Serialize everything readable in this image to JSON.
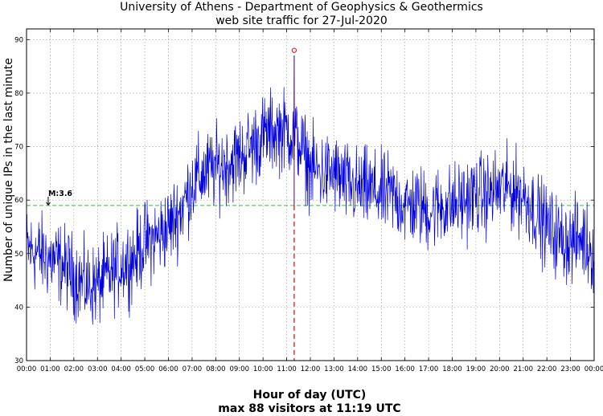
{
  "title_line1": "University of Athens - Department of Geophysics & Geothermics",
  "title_line2": "web site traffic for 27-Jul-2020",
  "footer_line1": "Hour of day (UTC)",
  "footer_line2": "max 88 visitors at 11:19 UTC",
  "colors": {
    "series": "#0000dd",
    "reference": "#22cc22",
    "marker": "#ee2222",
    "grid": "#999999"
  },
  "chart_data": {
    "type": "line",
    "ylabel": "Number of unique IPs in the last minute",
    "xlabel": "Hour of day (UTC)",
    "xlim": [
      "00:00",
      "24:00"
    ],
    "ylim": [
      30,
      92
    ],
    "grid": true,
    "x_ticks": [
      "00:00",
      "01:00",
      "02:00",
      "03:00",
      "04:00",
      "05:00",
      "06:00",
      "07:00",
      "08:00",
      "09:00",
      "10:00",
      "11:00",
      "12:00",
      "13:00",
      "14:00",
      "15:00",
      "16:00",
      "17:00",
      "18:00",
      "19:00",
      "20:00",
      "21:00",
      "22:00",
      "23:00",
      "00:00"
    ],
    "y_ticks": [
      30,
      40,
      50,
      60,
      70,
      80,
      90
    ],
    "series": [
      {
        "style": "noisy per-minute line, approx. +/-6 around mean",
        "x_hours": [
          0,
          0.5,
          1,
          1.5,
          2,
          2.5,
          3,
          3.5,
          4,
          4.5,
          5,
          5.5,
          6,
          6.5,
          7,
          7.5,
          8,
          8.5,
          9,
          9.5,
          10,
          10.5,
          11,
          11.5,
          12,
          12.5,
          13,
          13.5,
          14,
          14.5,
          15,
          15.5,
          16,
          16.5,
          17,
          17.5,
          18,
          18.5,
          19,
          19.5,
          20,
          20.5,
          21,
          21.5,
          22,
          22.5,
          23,
          23.5,
          24
        ],
        "values": [
          51,
          50,
          49,
          48,
          46,
          44,
          44,
          46,
          48,
          49,
          52,
          53,
          55,
          58,
          63,
          65,
          66,
          67,
          68,
          70,
          72,
          73,
          73,
          71,
          66,
          65,
          65,
          63,
          62,
          62,
          61,
          61,
          59,
          59,
          58,
          59,
          59,
          60,
          61,
          61,
          62,
          62,
          61,
          58,
          55,
          53,
          52,
          53,
          50
        ]
      }
    ],
    "reference_line": {
      "y": 59,
      "style": "dashed"
    },
    "annotations": [
      {
        "text": "M:3.6",
        "x": "00:55",
        "y": 59,
        "arrow": "down"
      }
    ],
    "max_marker": {
      "time": "11:19",
      "value": 88
    }
  }
}
